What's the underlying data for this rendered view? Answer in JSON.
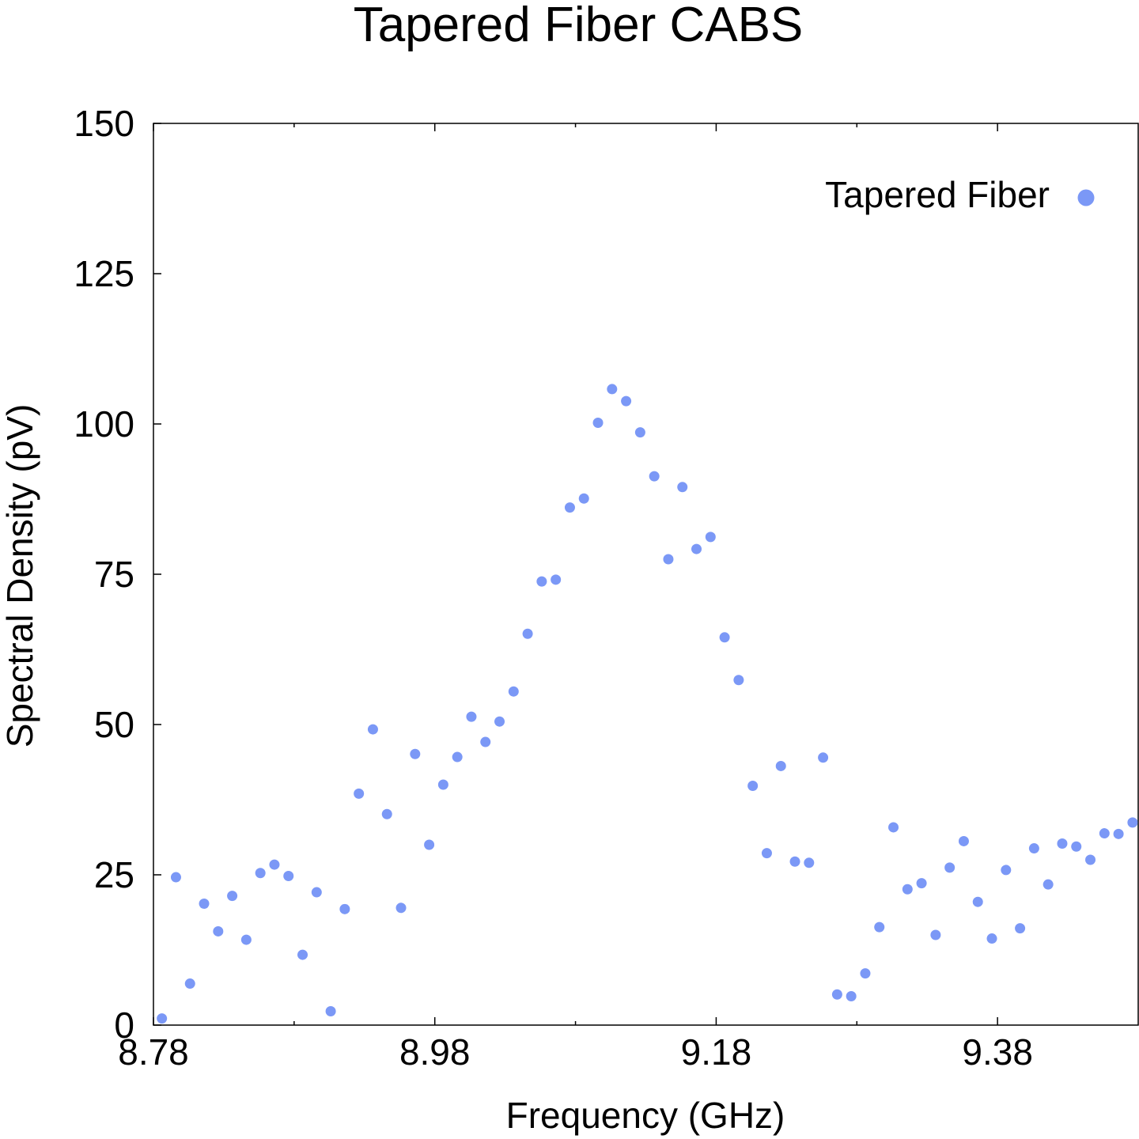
{
  "chart_data": {
    "type": "scatter",
    "title": "Tapered Fiber CABS",
    "xlabel": "Frequency (GHz)",
    "ylabel": "Spectral Density (pV)",
    "xlim": [
      8.78,
      9.48
    ],
    "ylim": [
      0,
      150
    ],
    "x_ticks": [
      8.78,
      8.98,
      9.18,
      9.38
    ],
    "x_tick_labels": [
      "8.78",
      "8.98",
      "9.18",
      "9.38"
    ],
    "x_minor_ticks": [
      8.88,
      9.08,
      9.28
    ],
    "y_ticks": [
      0,
      25,
      50,
      75,
      100,
      125,
      150
    ],
    "y_tick_labels": [
      "0",
      "25",
      "50",
      "75",
      "100",
      "125",
      "150"
    ],
    "grid": false,
    "legend_position": "top-right",
    "colors": {
      "marker": "#7b98f6"
    },
    "series": [
      {
        "name": "Tapered Fiber",
        "x": [
          8.786,
          8.796,
          8.806,
          8.816,
          8.826,
          8.836,
          8.846,
          8.856,
          8.866,
          8.876,
          8.886,
          8.896,
          8.906,
          8.916,
          8.926,
          8.936,
          8.946,
          8.956,
          8.966,
          8.976,
          8.986,
          8.996,
          9.006,
          9.016,
          9.026,
          9.036,
          9.046,
          9.056,
          9.066,
          9.076,
          9.086,
          9.096,
          9.106,
          9.116,
          9.126,
          9.136,
          9.146,
          9.156,
          9.166,
          9.176,
          9.186,
          9.196,
          9.206,
          9.216,
          9.226,
          9.236,
          9.246,
          9.256,
          9.266,
          9.276,
          9.286,
          9.296,
          9.306,
          9.316,
          9.326,
          9.336,
          9.346,
          9.356,
          9.366,
          9.376,
          9.386,
          9.396,
          9.406,
          9.416,
          9.426,
          9.436,
          9.446,
          9.456,
          9.466,
          9.476
        ],
        "y": [
          1.1,
          24.6,
          6.9,
          20.2,
          15.6,
          21.5,
          14.2,
          25.3,
          26.7,
          24.8,
          11.7,
          22.1,
          2.3,
          19.3,
          38.5,
          49.2,
          35.1,
          19.5,
          45.1,
          30.0,
          40.0,
          44.6,
          51.3,
          47.1,
          50.5,
          55.5,
          65.1,
          73.8,
          74.1,
          86.1,
          87.6,
          100.2,
          105.8,
          103.8,
          98.6,
          91.3,
          77.5,
          89.5,
          79.2,
          81.2,
          64.5,
          57.4,
          39.8,
          28.6,
          43.1,
          27.2,
          27.0,
          44.5,
          5.1,
          4.8,
          8.6,
          16.3,
          32.9,
          22.6,
          23.6,
          15.0,
          26.2,
          30.6,
          20.5,
          14.4,
          25.8,
          16.1,
          29.4,
          23.4,
          30.2,
          29.7,
          27.5,
          31.9,
          31.8,
          33.7
        ]
      }
    ]
  }
}
